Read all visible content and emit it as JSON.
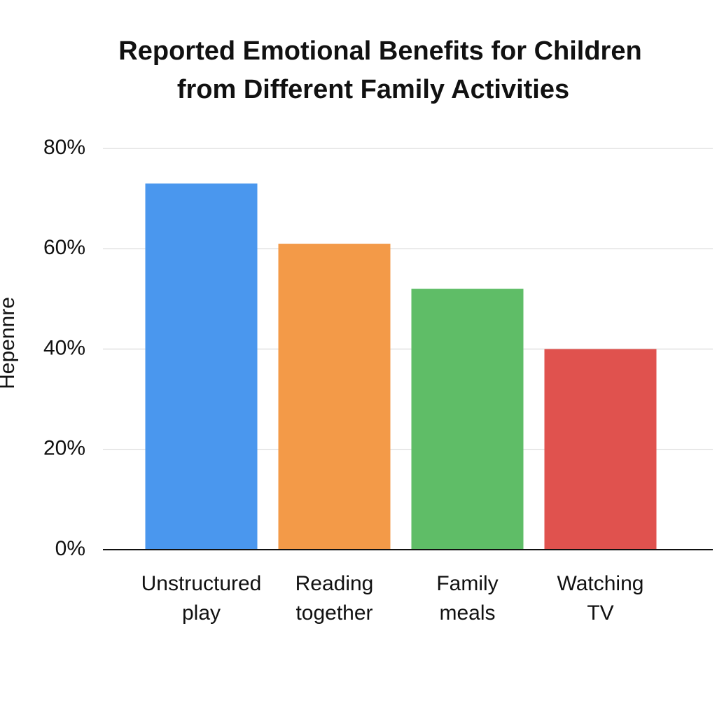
{
  "chart_data": {
    "type": "bar",
    "title": [
      "Reported Emotional Benefits for Children",
      "from Different Family Activities"
    ],
    "y_label": "Hepennre",
    "categories": [
      "Unstructured play",
      "Reading together",
      "Family meals",
      "Watching TV"
    ],
    "values": [
      73,
      61,
      52,
      40
    ],
    "colors": [
      "#4a97ee",
      "#f39a48",
      "#5fbd67",
      "#e0524e"
    ],
    "ylim": [
      0,
      80
    ],
    "yticks": [
      {
        "value": 0,
        "label": "0%"
      },
      {
        "value": 20,
        "label": "20%"
      },
      {
        "value": 40,
        "label": "40%"
      },
      {
        "value": 60,
        "label": "60%"
      },
      {
        "value": 80,
        "label": "80%"
      }
    ],
    "grid": true
  }
}
